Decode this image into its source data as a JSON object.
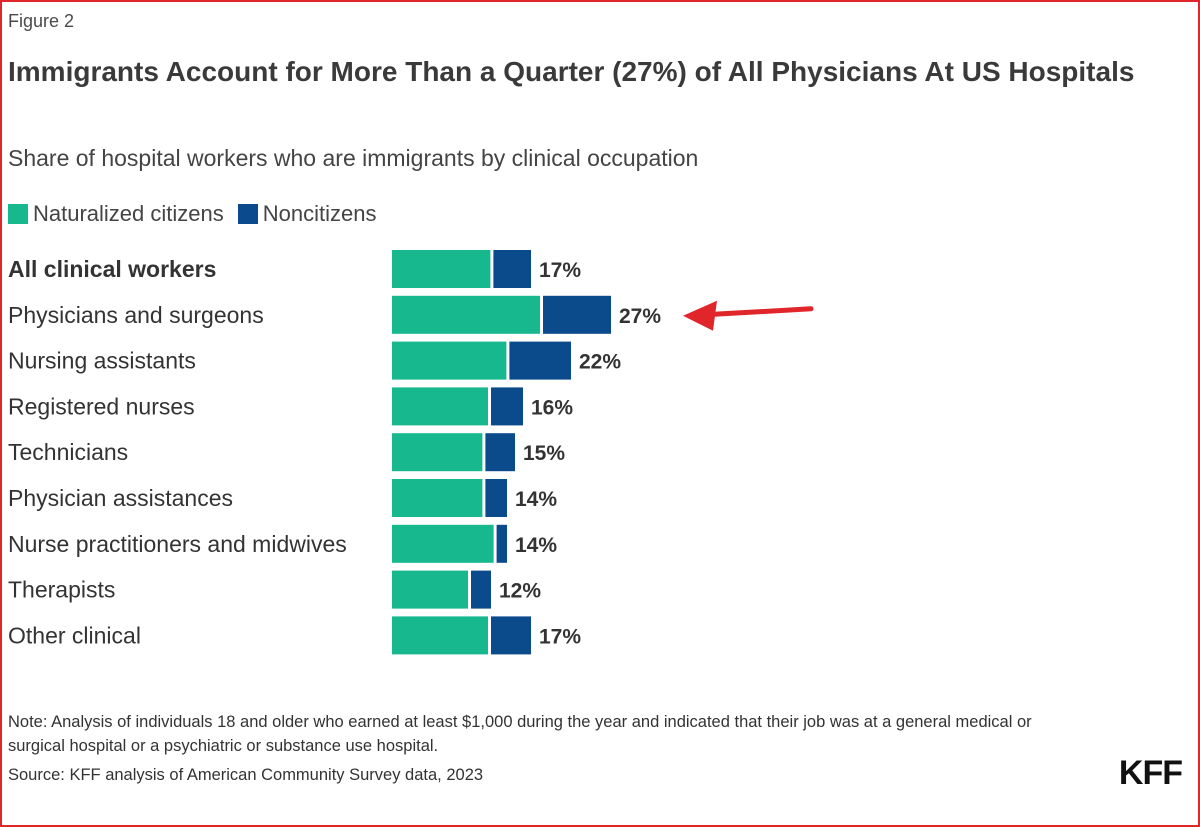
{
  "figure_label": "Figure 2",
  "title": "Immigrants Account for More Than a Quarter (27%) of All Physicians At US Hospitals",
  "subtitle": "Share of hospital workers who are immigrants by clinical occupation",
  "colors": {
    "naturalized": "#17b88e",
    "noncitizens": "#0b4a8b",
    "arrow": "#e0262b",
    "frame": "#e0262b"
  },
  "legend": {
    "naturalized_label": "Naturalized citizens",
    "noncitizens_label": "Noncitizens"
  },
  "chart_data": {
    "type": "bar",
    "orientation": "horizontal",
    "stacked": true,
    "categories": [
      "All clinical workers",
      "Physicians and surgeons",
      "Nursing assistants",
      "Registered nurses",
      "Technicians",
      "Physician assistances",
      "Nurse practitioners and midwives",
      "Therapists",
      "Other clinical"
    ],
    "bold_categories": [
      "All clinical workers"
    ],
    "series": [
      {
        "name": "Naturalized citizens",
        "values": [
          12.3,
          18.5,
          14.3,
          12.0,
          11.3,
          11.3,
          12.7,
          9.5,
          12.0
        ]
      },
      {
        "name": "Noncitizens",
        "values": [
          4.7,
          8.5,
          7.7,
          4.0,
          3.7,
          2.7,
          1.3,
          2.5,
          5.0
        ]
      }
    ],
    "total_labels": [
      "17%",
      "27%",
      "22%",
      "16%",
      "15%",
      "14%",
      "14%",
      "12%",
      "17%"
    ],
    "highlight_category": "Physicians and surgeons",
    "xlim": [
      0,
      30
    ],
    "grid": false
  },
  "note": "Note: Analysis of individuals 18 and older who earned at least $1,000 during the year and indicated that their job was at a general medical or surgical hospital or a psychiatric or substance use hospital.",
  "source": "Source: KFF analysis of American Community Survey data, 2023",
  "logo_text": "KFF"
}
